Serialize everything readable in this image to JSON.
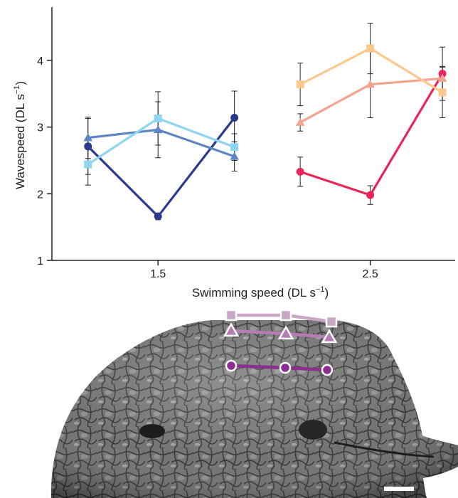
{
  "chart_data": {
    "type": "line",
    "xlabel": "Swimming speed (DL s",
    "xlabel_sup": "−1",
    "xlabel_end": ")",
    "ylabel": "Wavespeed (DL s",
    "ylabel_sup": "−1",
    "ylabel_end": ")",
    "xlim": [
      1.0,
      2.9
    ],
    "ylim": [
      1,
      4.8
    ],
    "xticks": [
      1.5,
      2.5
    ],
    "xtick_labels": [
      "1.5",
      "2.5"
    ],
    "yticks": [
      1,
      2,
      3,
      4
    ],
    "ytick_labels": [
      "1",
      "2",
      "3",
      "4"
    ],
    "grid": false,
    "series": [
      {
        "marker": "circle",
        "color": "#2a3a8f",
        "points": [
          {
            "x": 1.17,
            "y": 2.71,
            "err": 0.42
          },
          {
            "x": 1.5,
            "y": 1.66,
            "err": 0.05
          },
          {
            "x": 1.86,
            "y": 3.14,
            "err": 0.4
          }
        ]
      },
      {
        "marker": "triangle",
        "color": "#5f86c4",
        "points": [
          {
            "x": 1.17,
            "y": 2.84,
            "err": 0.31
          },
          {
            "x": 1.5,
            "y": 2.96,
            "err": 0.42
          },
          {
            "x": 1.86,
            "y": 2.56,
            "err": 0.22
          }
        ]
      },
      {
        "marker": "square",
        "color": "#8dd5f2",
        "points": [
          {
            "x": 1.17,
            "y": 2.44,
            "err": 0.31
          },
          {
            "x": 1.5,
            "y": 3.13,
            "err": 0.4
          },
          {
            "x": 1.86,
            "y": 2.7,
            "err": 0.2
          }
        ]
      },
      {
        "marker": "circle",
        "color": "#e8265a",
        "points": [
          {
            "x": 2.17,
            "y": 2.33,
            "err": 0.22
          },
          {
            "x": 2.5,
            "y": 1.98,
            "err": 0.14
          },
          {
            "x": 2.84,
            "y": 3.8,
            "err": 0.4
          }
        ]
      },
      {
        "marker": "triangle",
        "color": "#f2a48e",
        "points": [
          {
            "x": 2.17,
            "y": 3.07,
            "err": 0.13
          },
          {
            "x": 2.5,
            "y": 3.64,
            "err": 0.5
          },
          {
            "x": 2.84,
            "y": 3.73,
            "err": 0.18
          }
        ]
      },
      {
        "marker": "square",
        "color": "#f9c98e",
        "points": [
          {
            "x": 2.17,
            "y": 3.64,
            "err": 0.32
          },
          {
            "x": 2.5,
            "y": 4.18,
            "err": 0.38
          },
          {
            "x": 2.84,
            "y": 3.52,
            "err": 0.38
          }
        ]
      }
    ]
  },
  "overlay_markers": {
    "series": [
      {
        "marker": "square",
        "color": "#c9a6c3",
        "count": 3
      },
      {
        "marker": "triangle",
        "color": "#b77bb5",
        "count": 3
      },
      {
        "marker": "circle",
        "color": "#8c2d91",
        "count": 3
      }
    ]
  }
}
